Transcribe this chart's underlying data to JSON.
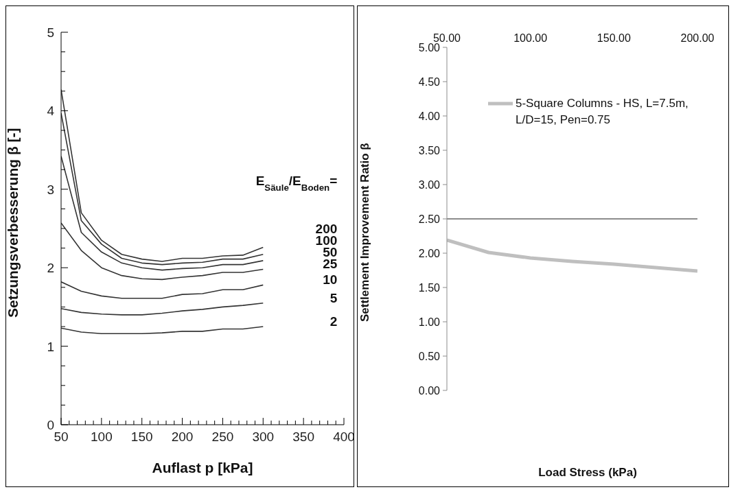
{
  "chart_data": [
    {
      "type": "line",
      "xlabel": "Auflast p [kPa]",
      "ylabel": "Setzungsverbesserung β [-]",
      "legend_title": "E$_{Säule}$/E$_{Boden}$=",
      "legend": false,
      "grid": false,
      "marker": "none",
      "line_style": "solid",
      "x": [
        50,
        75,
        100,
        125,
        150,
        175,
        200,
        225,
        250,
        275,
        300
      ],
      "xlim": [
        50,
        400
      ],
      "ylim": [
        0,
        5
      ],
      "xticks": [
        50,
        {
          "value": 60,
          "label": null
        },
        {
          "value": 70,
          "label": null
        },
        {
          "value": 80,
          "label": null
        },
        {
          "value": 90,
          "label": null
        },
        100,
        {
          "value": 110,
          "label": null
        },
        {
          "value": 120,
          "label": null
        },
        {
          "value": 130,
          "label": null
        },
        {
          "value": 140,
          "label": null
        },
        150,
        {
          "value": 160,
          "label": null
        },
        {
          "value": 170,
          "label": null
        },
        {
          "value": 180,
          "label": null
        },
        {
          "value": 190,
          "label": null
        },
        200,
        {
          "value": 210,
          "label": null
        },
        {
          "value": 220,
          "label": null
        },
        {
          "value": 230,
          "label": null
        },
        {
          "value": 240,
          "label": null
        },
        250,
        {
          "value": 260,
          "label": null
        },
        {
          "value": 270,
          "label": null
        },
        {
          "value": 280,
          "label": null
        },
        {
          "value": 290,
          "label": null
        },
        300,
        {
          "value": 310,
          "label": null
        },
        {
          "value": 320,
          "label": null
        },
        {
          "value": 330,
          "label": null
        },
        {
          "value": 340,
          "label": null
        },
        350,
        {
          "value": 360,
          "label": null
        },
        {
          "value": 370,
          "label": null
        },
        {
          "value": 380,
          "label": null
        },
        {
          "value": 390,
          "label": null
        },
        400
      ],
      "yticks": [
        0,
        {
          "value": 0.25,
          "label": null
        },
        {
          "value": 0.5,
          "label": null
        },
        {
          "value": 0.75,
          "label": null
        },
        1,
        {
          "value": 1.25,
          "label": null
        },
        {
          "value": 1.5,
          "label": null
        },
        {
          "value": 1.75,
          "label": null
        },
        2,
        {
          "value": 2.25,
          "label": null
        },
        {
          "value": 2.5,
          "label": null
        },
        {
          "value": 2.75,
          "label": null
        },
        3,
        {
          "value": 3.25,
          "label": null
        },
        {
          "value": 3.5,
          "label": null
        },
        {
          "value": 3.75,
          "label": null
        },
        4,
        {
          "value": 4.25,
          "label": null
        },
        {
          "value": 4.5,
          "label": null
        },
        {
          "value": 4.75,
          "label": null
        },
        5
      ],
      "series": [
        {
          "name": "200",
          "color": "#333333",
          "values": [
            4.27,
            2.7,
            2.35,
            2.17,
            2.11,
            2.08,
            2.12,
            2.12,
            2.15,
            2.16,
            2.26
          ]
        },
        {
          "name": "100",
          "color": "#333333",
          "values": [
            3.97,
            2.6,
            2.3,
            2.12,
            2.06,
            2.04,
            2.06,
            2.07,
            2.11,
            2.11,
            2.17
          ]
        },
        {
          "name": "50",
          "color": "#333333",
          "values": [
            3.42,
            2.45,
            2.2,
            2.06,
            2.0,
            1.97,
            1.99,
            2.0,
            2.04,
            2.04,
            2.09
          ]
        },
        {
          "name": "25",
          "color": "#333333",
          "values": [
            2.57,
            2.22,
            2.0,
            1.9,
            1.86,
            1.85,
            1.88,
            1.9,
            1.94,
            1.94,
            1.98
          ]
        },
        {
          "name": "10",
          "color": "#333333",
          "values": [
            1.82,
            1.7,
            1.64,
            1.61,
            1.61,
            1.61,
            1.66,
            1.67,
            1.72,
            1.72,
            1.78
          ]
        },
        {
          "name": "5",
          "color": "#333333",
          "values": [
            1.48,
            1.43,
            1.41,
            1.4,
            1.4,
            1.42,
            1.45,
            1.47,
            1.5,
            1.52,
            1.55
          ]
        },
        {
          "name": "2",
          "color": "#333333",
          "values": [
            1.23,
            1.18,
            1.16,
            1.16,
            1.16,
            1.17,
            1.19,
            1.19,
            1.22,
            1.22,
            1.25
          ]
        }
      ]
    },
    {
      "type": "line",
      "xlabel": "Load Stress (kPa)",
      "ylabel": "Settlement Improvement Ratio β",
      "legend": "top right",
      "grid": false,
      "marker": "none",
      "line_style": "solid",
      "x": [
        50,
        75,
        100,
        125,
        150,
        175,
        200
      ],
      "x2lim": [
        50,
        200
      ],
      "x2ticks": [
        {
          "value": 50,
          "label": "50.00"
        },
        {
          "value": 100,
          "label": "100.00"
        },
        {
          "value": 150,
          "label": "150.00"
        },
        {
          "value": 200,
          "label": "200.00"
        }
      ],
      "ylim": [
        0,
        5
      ],
      "yticks": [
        {
          "value": 0,
          "label": "0.00"
        },
        {
          "value": 0.5,
          "label": "0.50"
        },
        {
          "value": 1,
          "label": "1.00"
        },
        {
          "value": 1.5,
          "label": "1.50"
        },
        {
          "value": 2,
          "label": "2.00"
        },
        {
          "value": 2.5,
          "label": "2.50"
        },
        {
          "value": 3,
          "label": "3.00"
        },
        {
          "value": 3.5,
          "label": "3.50"
        },
        {
          "value": 4,
          "label": "4.00"
        },
        {
          "value": 4.5,
          "label": "4.50"
        },
        {
          "value": 5,
          "label": "5.00"
        }
      ],
      "ref_lines": [
        {
          "axis": "y",
          "value": 2.5,
          "color": "#8c8c8c"
        }
      ],
      "series": [
        {
          "name": "5-Square Columns - HS, L=7.5m, L/D=15, Pen=0.75",
          "axis": "x2",
          "color": "#bfbfbf",
          "values": [
            2.19,
            2.01,
            1.93,
            1.88,
            1.84,
            1.79,
            1.74
          ]
        }
      ]
    }
  ]
}
